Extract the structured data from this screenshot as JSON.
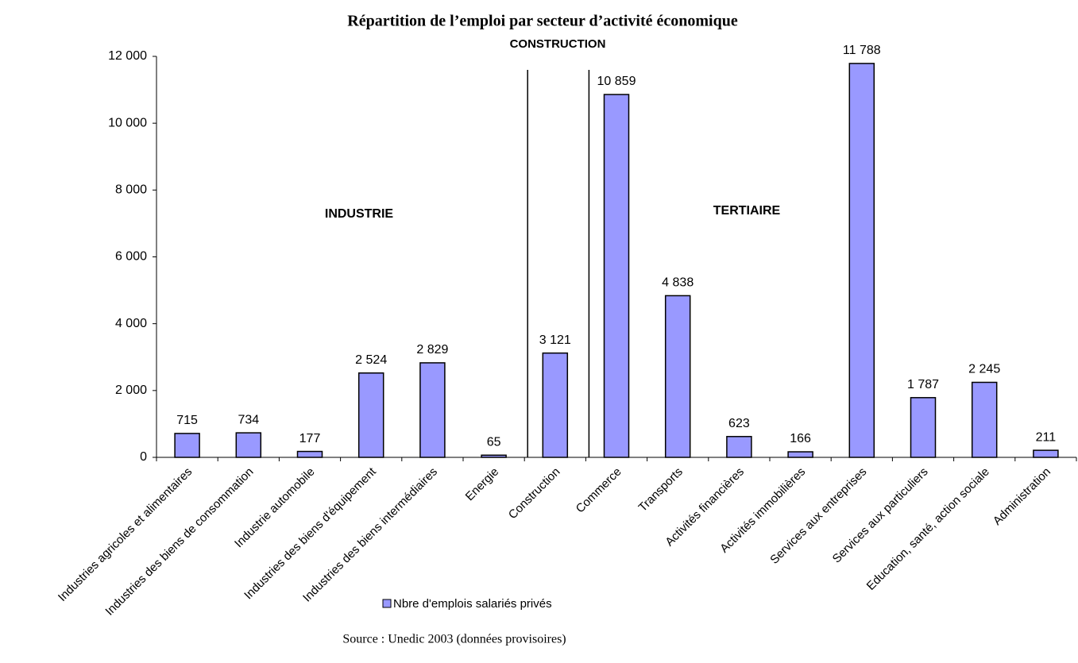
{
  "chart_data": {
    "type": "bar",
    "title": "Répartition de l’emploi par secteur d’activité économique",
    "annotations": [
      "CONSTRUCTION",
      "INDUSTRIE",
      "TERTIAIRE"
    ],
    "source": "Source : Unedic 2003 (données provisoires)",
    "categories": [
      "Industries agricoles et alimentaires",
      "Industries des biens de consommation",
      "Industrie automobile",
      "Industries des biens d'équipement",
      "Industries des biens intermédiaires",
      "Energie",
      "Construction",
      "Commerce",
      "Transports",
      "Activités financières",
      "Activités immobilières",
      "Services aux entreprises",
      "Services aux particuliers",
      "Education, santé, action sociale",
      "Administration"
    ],
    "series": [
      {
        "name": "Nbre d'emplois salariés privés",
        "color": "#9999ff",
        "values": [
          715,
          734,
          177,
          2524,
          2829,
          65,
          3121,
          10859,
          4838,
          623,
          166,
          11788,
          1787,
          2245,
          211
        ],
        "value_labels": [
          "715",
          "734",
          "177",
          "2 524",
          "2 829",
          "65",
          "3 121",
          "10 859",
          "4 838",
          "623",
          "166",
          "11 788",
          "1 787",
          "2 245",
          "211"
        ]
      }
    ],
    "ylim": [
      0,
      12000
    ],
    "yticks": [
      0,
      {
        "value": 2000,
        "label": "2 000"
      },
      {
        "value": 4000,
        "label": "4 000"
      },
      {
        "value": 6000,
        "label": "6 000"
      },
      {
        "value": 8000,
        "label": "8 000"
      },
      {
        "value": 10000,
        "label": "10 000"
      },
      {
        "value": 12000,
        "label": "12 000"
      }
    ],
    "legend": "bottom"
  }
}
